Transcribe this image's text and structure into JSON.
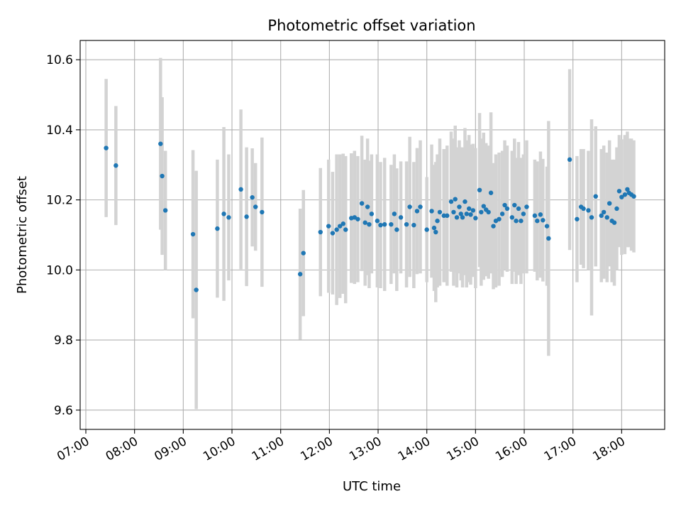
{
  "chart_data": {
    "type": "scatter",
    "title": "Photometric offset variation",
    "xlabel": "UTC time",
    "ylabel": "Photometric offset",
    "x_ticks": [
      "07:00",
      "08:00",
      "09:00",
      "10:00",
      "11:00",
      "12:00",
      "13:00",
      "14:00",
      "15:00",
      "16:00",
      "17:00",
      "18:00"
    ],
    "y_ticks": [
      "9.6",
      "9.8",
      "10.0",
      "10.2",
      "10.4",
      "10.6"
    ],
    "xlim": [
      "06:53",
      "18:53"
    ],
    "ylim": [
      9.545,
      10.655
    ],
    "grid": true,
    "colors": {
      "point": "#1f77b4",
      "errorbar": "#d3d3d3",
      "grid": "#b0b0b0"
    },
    "series": [
      {
        "points": [
          [
            "07:25",
            10.348,
            0.197
          ],
          [
            "07:37",
            10.298,
            0.17
          ],
          [
            "08:32",
            10.36,
            0.245
          ],
          [
            "08:34",
            10.268,
            0.225
          ],
          [
            "08:38",
            10.17,
            0.17
          ],
          [
            "09:12",
            10.102,
            0.24
          ],
          [
            "09:16",
            9.943,
            0.34
          ],
          [
            "09:42",
            10.118,
            0.197
          ],
          [
            "09:50",
            10.16,
            0.248
          ],
          [
            "09:56",
            10.15,
            0.18
          ],
          [
            "10:11",
            10.23,
            0.228
          ],
          [
            "10:18",
            10.152,
            0.198
          ],
          [
            "10:25",
            10.207,
            0.14
          ],
          [
            "10:29",
            10.18,
            0.125
          ],
          [
            "10:37",
            10.165,
            0.213
          ],
          [
            "11:24",
            9.988,
            0.187
          ],
          [
            "11:28",
            10.048,
            0.18
          ],
          [
            "11:49",
            10.108,
            0.183
          ],
          [
            "11:59",
            10.125,
            0.19
          ],
          [
            "12:04",
            10.105,
            0.175
          ],
          [
            "12:09",
            10.115,
            0.215
          ],
          [
            "12:13",
            10.125,
            0.205
          ],
          [
            "12:17",
            10.132,
            0.2
          ],
          [
            "12:20",
            10.115,
            0.21
          ],
          [
            "12:27",
            10.148,
            0.185
          ],
          [
            "12:31",
            10.15,
            0.19
          ],
          [
            "12:35",
            10.145,
            0.18
          ],
          [
            "12:40",
            10.19,
            0.193
          ],
          [
            "12:44",
            10.135,
            0.18
          ],
          [
            "12:47",
            10.18,
            0.195
          ],
          [
            "12:49",
            10.13,
            0.182
          ],
          [
            "12:52",
            10.16,
            0.17
          ],
          [
            "12:59",
            10.14,
            0.19
          ],
          [
            "13:03",
            10.128,
            0.18
          ],
          [
            "13:08",
            10.13,
            0.19
          ],
          [
            "13:16",
            10.13,
            0.17
          ],
          [
            "13:20",
            10.16,
            0.17
          ],
          [
            "13:23",
            10.115,
            0.175
          ],
          [
            "13:28",
            10.15,
            0.16
          ],
          [
            "13:35",
            10.13,
            0.18
          ],
          [
            "13:39",
            10.18,
            0.2
          ],
          [
            "13:44",
            10.128,
            0.18
          ],
          [
            "13:48",
            10.168,
            0.18
          ],
          [
            "13:52",
            10.18,
            0.19
          ],
          [
            "14:00",
            10.115,
            0.15
          ],
          [
            "14:06",
            10.168,
            0.19
          ],
          [
            "14:09",
            10.12,
            0.18
          ],
          [
            "14:11",
            10.108,
            0.2
          ],
          [
            "14:13",
            10.14,
            0.19
          ],
          [
            "14:16",
            10.165,
            0.21
          ],
          [
            "14:21",
            10.155,
            0.19
          ],
          [
            "14:25",
            10.155,
            0.2
          ],
          [
            "14:30",
            10.195,
            0.2
          ],
          [
            "14:33",
            10.165,
            0.21
          ],
          [
            "14:35",
            10.202,
            0.21
          ],
          [
            "14:37",
            10.15,
            0.2
          ],
          [
            "14:40",
            10.18,
            0.19
          ],
          [
            "14:42",
            10.16,
            0.19
          ],
          [
            "14:44",
            10.15,
            0.2
          ],
          [
            "14:47",
            10.195,
            0.21
          ],
          [
            "14:49",
            10.16,
            0.21
          ],
          [
            "14:52",
            10.175,
            0.21
          ],
          [
            "14:54",
            10.158,
            0.2
          ],
          [
            "14:57",
            10.17,
            0.19
          ],
          [
            "15:00",
            10.148,
            0.2
          ],
          [
            "15:05",
            10.228,
            0.22
          ],
          [
            "15:07",
            10.165,
            0.21
          ],
          [
            "15:10",
            10.182,
            0.21
          ],
          [
            "15:13",
            10.172,
            0.19
          ],
          [
            "15:16",
            10.165,
            0.19
          ],
          [
            "15:19",
            10.22,
            0.23
          ],
          [
            "15:22",
            10.125,
            0.18
          ],
          [
            "15:25",
            10.14,
            0.19
          ],
          [
            "15:29",
            10.145,
            0.19
          ],
          [
            "15:33",
            10.16,
            0.18
          ],
          [
            "15:36",
            10.185,
            0.185
          ],
          [
            "15:39",
            10.175,
            0.18
          ],
          [
            "15:45",
            10.15,
            0.19
          ],
          [
            "15:48",
            10.185,
            0.19
          ],
          [
            "15:50",
            10.14,
            0.18
          ],
          [
            "15:53",
            10.175,
            0.19
          ],
          [
            "15:56",
            10.14,
            0.18
          ],
          [
            "15:59",
            10.16,
            0.17
          ],
          [
            "16:03",
            10.18,
            0.19
          ],
          [
            "16:13",
            10.155,
            0.16
          ],
          [
            "16:16",
            10.14,
            0.17
          ],
          [
            "16:20",
            10.158,
            0.18
          ],
          [
            "16:23",
            10.142,
            0.175
          ],
          [
            "16:28",
            10.125,
            0.17
          ],
          [
            "16:30",
            10.09,
            0.335
          ],
          [
            "16:56",
            10.315,
            0.258
          ],
          [
            "17:05",
            10.145,
            0.18
          ],
          [
            "17:10",
            10.18,
            0.165
          ],
          [
            "17:13",
            10.175,
            0.17
          ],
          [
            "17:19",
            10.17,
            0.17
          ],
          [
            "17:23",
            10.15,
            0.28
          ],
          [
            "17:28",
            10.21,
            0.2
          ],
          [
            "17:35",
            10.155,
            0.19
          ],
          [
            "17:38",
            10.165,
            0.19
          ],
          [
            "17:42",
            10.15,
            0.185
          ],
          [
            "17:45",
            10.19,
            0.18
          ],
          [
            "17:48",
            10.14,
            0.175
          ],
          [
            "17:51",
            10.135,
            0.18
          ],
          [
            "17:54",
            10.175,
            0.175
          ],
          [
            "17:57",
            10.225,
            0.16
          ],
          [
            "18:00",
            10.208,
            0.165
          ],
          [
            "18:04",
            10.215,
            0.17
          ],
          [
            "18:07",
            10.23,
            0.165
          ],
          [
            "18:09",
            10.22,
            0.155
          ],
          [
            "18:12",
            10.215,
            0.16
          ],
          [
            "18:15",
            10.21,
            0.16
          ]
        ]
      }
    ]
  }
}
